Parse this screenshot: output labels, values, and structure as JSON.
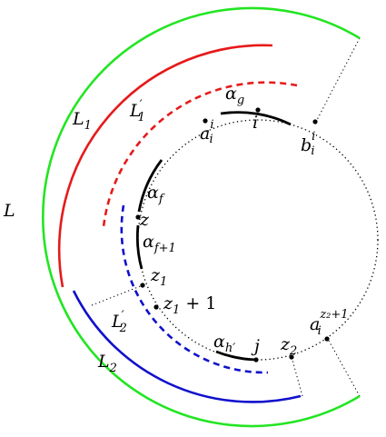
{
  "labels": {
    "L": "L",
    "L1": "L",
    "L1_sub": "1",
    "L1p": "L",
    "L1p_sub": "1",
    "L1p_prime": "′",
    "L2": "L",
    "L2_sub": "2",
    "L2p": "L",
    "L2p_sub": "2",
    "L2p_prime": "′",
    "alpha_g": "α",
    "alpha_g_sub": "g",
    "i": "i",
    "a_i": "a",
    "a_i_sup": "i",
    "a_i_sub": "i",
    "b_i": "b",
    "b_i_sup": "i",
    "b_i_sub": "i",
    "alpha_f": "α",
    "alpha_f_sub": "f",
    "z": "z",
    "alpha_f1": "α",
    "alpha_f1_sub": "f+1",
    "z1": "z",
    "z1_sub": "1",
    "z1p1": "z",
    "z1p1_sub": "1",
    "z1p1_rest": " + 1",
    "alpha_h": "α",
    "alpha_h_sub": "h′",
    "j": "j",
    "z2": "z",
    "z2_sub": "2",
    "a_i_z2": "a",
    "a_i_z2_sup": "z₂+1",
    "a_i_z2_sub": "i"
  },
  "colors": {
    "green": "#22e522",
    "red": "#e61a1a",
    "blue": "#1010cc",
    "black": "#000000"
  }
}
